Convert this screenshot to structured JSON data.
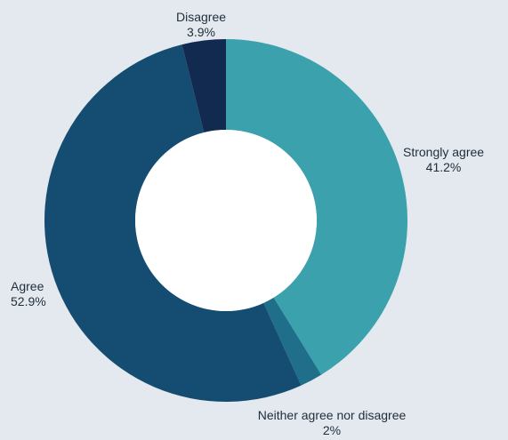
{
  "chart_data": {
    "type": "pie",
    "donut": true,
    "direction": "clockwise",
    "start": "top",
    "slices": [
      {
        "label": "Strongly agree",
        "value": 41.2,
        "value_label": "41.2%",
        "color": "#3aa1ad"
      },
      {
        "label": "Neither agree nor disagree",
        "value": 2.0,
        "value_label": "2%",
        "color": "#1f6f8b"
      },
      {
        "label": "Agree",
        "value": 52.9,
        "value_label": "52.9%",
        "color": "#154c71"
      },
      {
        "label": "Disagree",
        "value": 3.9,
        "value_label": "3.9%",
        "color": "#132a50"
      }
    ],
    "background": "#e3e9ee",
    "hole_color": "#ffffff"
  }
}
